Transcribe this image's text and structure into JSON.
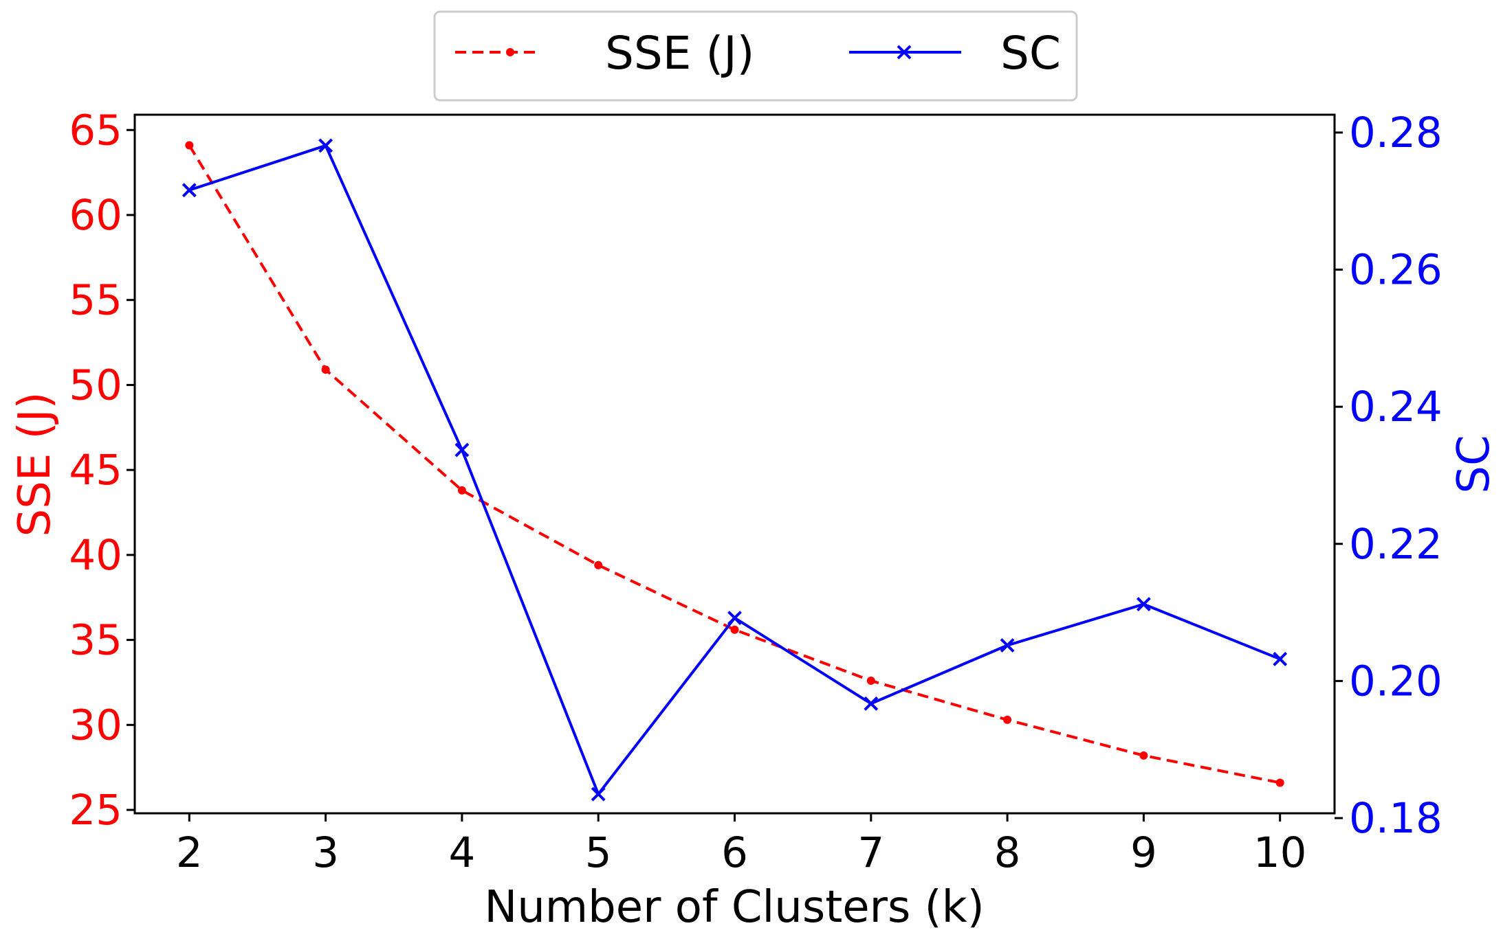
{
  "chart_data": {
    "type": "line",
    "title": "",
    "xlabel": "Number of Clusters (k)",
    "x": [
      2,
      3,
      4,
      5,
      6,
      7,
      8,
      9,
      10
    ],
    "xticks": [
      "2",
      "3",
      "4",
      "5",
      "6",
      "7",
      "8",
      "9",
      "10"
    ],
    "xlim": [
      1.6,
      10.4
    ],
    "y_left": {
      "label": "SSE (J)",
      "color": "#ff0000",
      "lim": [
        24.8,
        65.9
      ],
      "ticks": [
        "25",
        "30",
        "35",
        "40",
        "45",
        "50",
        "55",
        "60",
        "65"
      ]
    },
    "y_right": {
      "label": "SC",
      "color": "#0000ff",
      "lim": [
        0.1807,
        0.2826
      ],
      "ticks": [
        "0.18",
        "0.20",
        "0.22",
        "0.24",
        "0.26",
        "0.28"
      ]
    },
    "series": [
      {
        "name": "SSE (J)",
        "axis": "left",
        "color": "#ff0000",
        "line_style": "dashed",
        "marker": "dot",
        "values": [
          64.1,
          50.9,
          43.8,
          39.4,
          35.6,
          32.6,
          30.3,
          28.2,
          26.6
        ]
      },
      {
        "name": "SC",
        "axis": "right",
        "color": "#0000ff",
        "line_style": "solid",
        "marker": "x",
        "values": [
          0.2716,
          0.2781,
          0.2337,
          0.1835,
          0.2092,
          0.1967,
          0.2052,
          0.2112,
          0.2032
        ]
      }
    ],
    "legend": {
      "position": "top-center",
      "entries": [
        "SSE (J)",
        "SC"
      ]
    },
    "grid": false
  }
}
